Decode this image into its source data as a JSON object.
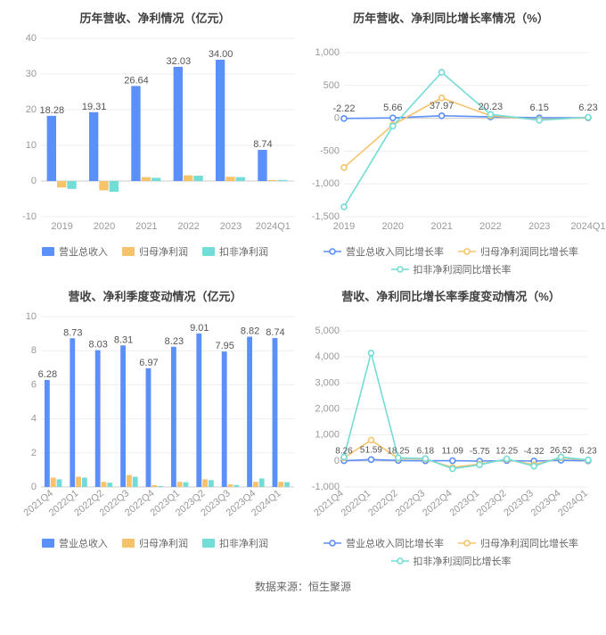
{
  "footer": "数据来源：恒生聚源",
  "palette": {
    "axis": "#cccccc",
    "grid": "#eeeeee",
    "tick_text": "#999999",
    "label_text": "#555555",
    "title_text": "#404040"
  },
  "charts": {
    "annual_bar": {
      "type": "bar",
      "title": "历年营收、净利情况（亿元）",
      "title_fontsize": 13,
      "label_fontsize": 11,
      "value_fontsize": 11,
      "background_color": "#ffffff",
      "ylim": [
        -10,
        40
      ],
      "ytick_step": 10,
      "categories": [
        "2019",
        "2020",
        "2021",
        "2022",
        "2023",
        "2024Q1"
      ],
      "series": [
        {
          "name": "营业总收入",
          "color": "#5b8ff9",
          "values": [
            18.28,
            19.31,
            26.64,
            32.03,
            34.0,
            8.74
          ],
          "show_labels": true
        },
        {
          "name": "归母净利润",
          "color": "#f6c36a",
          "values": [
            -1.8,
            -2.6,
            1.1,
            1.6,
            1.2,
            0.3
          ],
          "show_labels": false
        },
        {
          "name": "扣非净利润",
          "color": "#74dcd6",
          "values": [
            -2.2,
            -3.0,
            0.9,
            1.5,
            1.1,
            0.3
          ],
          "show_labels": false
        }
      ]
    },
    "annual_line": {
      "type": "line",
      "title": "历年营收、净利同比增长率情况（%）",
      "title_fontsize": 13,
      "label_fontsize": 11,
      "value_fontsize": 11,
      "background_color": "#ffffff",
      "ylim": [
        -1500,
        1000
      ],
      "ytick_step": 500,
      "categories": [
        "2019",
        "2020",
        "2021",
        "2022",
        "2023",
        "2024Q1"
      ],
      "top_labels": [
        "-2.22",
        "5.66",
        "37.97",
        "20.23",
        "6.15",
        "6.23"
      ],
      "series": [
        {
          "name": "营业总收入同比增长率",
          "color": "#5b8ff9",
          "values": [
            -2.22,
            5.66,
            37.97,
            20.23,
            6.15,
            6.23
          ]
        },
        {
          "name": "归母净利润同比增长率",
          "color": "#f6c36a",
          "values": [
            -750,
            -100,
            310,
            40,
            -20,
            10
          ]
        },
        {
          "name": "扣非净利润同比增长率",
          "color": "#74dcd6",
          "values": [
            -1350,
            -120,
            700,
            60,
            -30,
            15
          ]
        }
      ]
    },
    "quarter_bar": {
      "type": "bar",
      "title": "营收、净利季度变动情况（亿元）",
      "title_fontsize": 13,
      "label_fontsize": 11,
      "value_fontsize": 11,
      "background_color": "#ffffff",
      "ylim": [
        0,
        10
      ],
      "ytick_step": 2,
      "rotate_x": -40,
      "categories": [
        "2021Q4",
        "2022Q1",
        "2022Q2",
        "2022Q3",
        "2022Q4",
        "2023Q1",
        "2023Q2",
        "2023Q3",
        "2023Q4",
        "2024Q1"
      ],
      "series": [
        {
          "name": "营业总收入",
          "color": "#5b8ff9",
          "values": [
            6.28,
            8.73,
            8.03,
            8.31,
            6.97,
            8.23,
            9.01,
            7.95,
            8.82,
            8.74
          ],
          "show_labels": true
        },
        {
          "name": "归母净利润",
          "color": "#f6c36a",
          "values": [
            0.55,
            0.6,
            0.3,
            0.7,
            0.1,
            0.3,
            0.45,
            0.15,
            0.3,
            0.3
          ],
          "show_labels": false
        },
        {
          "name": "扣非净利润",
          "color": "#74dcd6",
          "values": [
            0.45,
            0.55,
            0.25,
            0.6,
            0.05,
            0.28,
            0.4,
            0.12,
            0.5,
            0.28
          ],
          "show_labels": false
        }
      ]
    },
    "quarter_line": {
      "type": "line",
      "title": "营收、净利同比增长率季度变动情况（%）",
      "title_fontsize": 13,
      "label_fontsize": 11,
      "value_fontsize": 10,
      "background_color": "#ffffff",
      "ylim": [
        -1000,
        5000
      ],
      "ytick_step": 1000,
      "rotate_x": -40,
      "categories": [
        "2021Q4",
        "2022Q1",
        "2022Q2",
        "2022Q3",
        "2022Q4",
        "2023Q1",
        "2023Q2",
        "2023Q3",
        "2023Q4",
        "2024Q1"
      ],
      "top_labels": [
        "8.26",
        "51.59",
        "18.25",
        "6.18",
        "11.09",
        "-5.75",
        "12.25",
        "-4.32",
        "26.52",
        "6.23"
      ],
      "series": [
        {
          "name": "营业总收入同比增长率",
          "color": "#5b8ff9",
          "values": [
            8.26,
            51.59,
            18.25,
            6.18,
            11.09,
            -5.75,
            12.25,
            -4.32,
            26.52,
            6.23
          ]
        },
        {
          "name": "归母净利润同比增长率",
          "color": "#f6c36a",
          "values": [
            120,
            800,
            100,
            70,
            -250,
            -120,
            60,
            -150,
            120,
            30
          ]
        },
        {
          "name": "扣非净利润同比增长率",
          "color": "#74dcd6",
          "values": [
            150,
            4150,
            120,
            90,
            -300,
            -150,
            80,
            -200,
            150,
            40
          ]
        }
      ]
    }
  }
}
